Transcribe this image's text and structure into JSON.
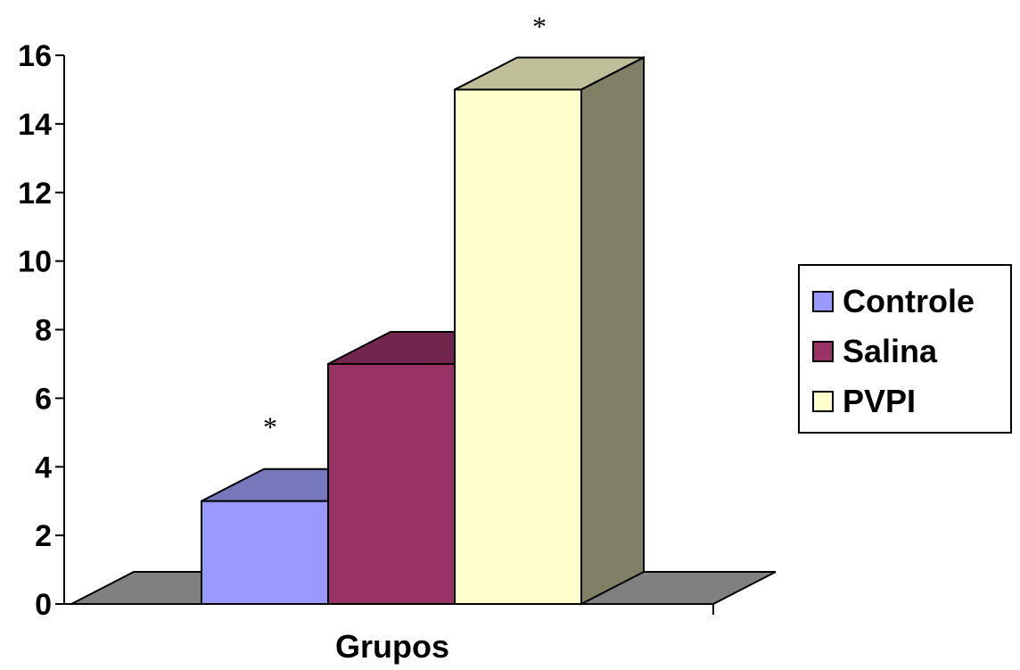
{
  "chart_data": {
    "type": "bar",
    "categories": [
      "Grupos"
    ],
    "series": [
      {
        "name": "Controle",
        "values": [
          3
        ],
        "color": "#9999ff",
        "top_color": "#7777bb",
        "side_color": "#66668a"
      },
      {
        "name": "Salina",
        "values": [
          7
        ],
        "color": "#993366",
        "top_color": "#73264d",
        "side_color": "#5c1f3d"
      },
      {
        "name": "PVPI",
        "values": [
          15
        ],
        "color": "#ffffcc",
        "top_color": "#bfbf99",
        "side_color": "#808066"
      }
    ],
    "annotations": [
      {
        "series": "Controle",
        "text": "*"
      },
      {
        "series": "PVPI",
        "text": "*"
      }
    ],
    "title": "",
    "xlabel": "Grupos",
    "ylabel": "",
    "ylim": [
      0,
      16
    ],
    "yticks": [
      "0",
      "2",
      "4",
      "6",
      "8",
      "10",
      "12",
      "14",
      "16"
    ],
    "grid": false,
    "legend_position": "right",
    "three_d": true,
    "floor_color": "#808080"
  }
}
